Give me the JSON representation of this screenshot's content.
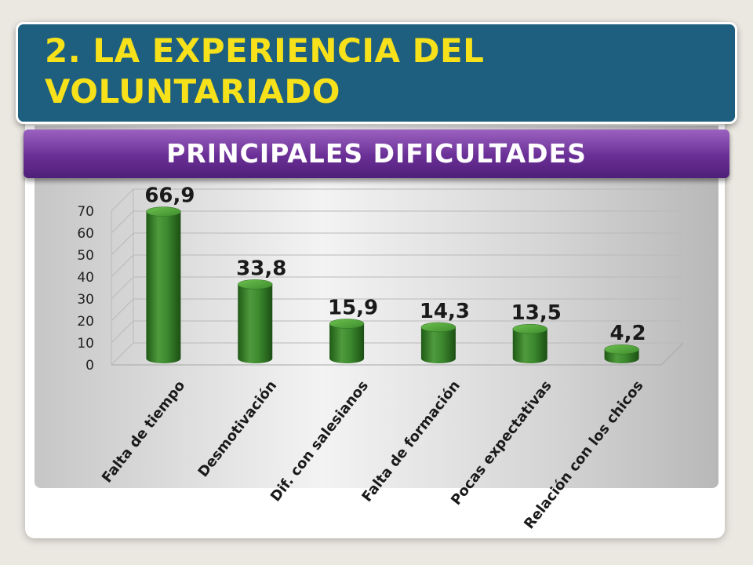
{
  "slide": {
    "title": "2. LA EXPERIENCIA DEL VOLUNTARIADO",
    "subtitle": "PRINCIPALES DIFICULTADES"
  },
  "colors": {
    "background": "#ebe7e1",
    "title_banner": "#1e5f80",
    "title_text": "#f7e11a",
    "ribbon": "#6a2f96",
    "bar": "#3d8a2f"
  },
  "chart_data": {
    "type": "bar",
    "style": "3d-cylinder",
    "categories": [
      "Falta de tiempo",
      "Desmotivación",
      "Dif. con salesianos",
      "Falta de formación",
      "Pocas expectativas",
      "Relación con los chicos"
    ],
    "values": [
      66.9,
      33.8,
      15.9,
      14.3,
      13.5,
      4.2
    ],
    "data_labels": [
      "66,9",
      "33,8",
      "15,9",
      "14,3",
      "13,5",
      "4,2"
    ],
    "y_ticks": [
      0,
      10,
      20,
      30,
      40,
      50,
      60,
      70
    ],
    "ylim": [
      0,
      70
    ],
    "grid": true,
    "legend": "none"
  }
}
